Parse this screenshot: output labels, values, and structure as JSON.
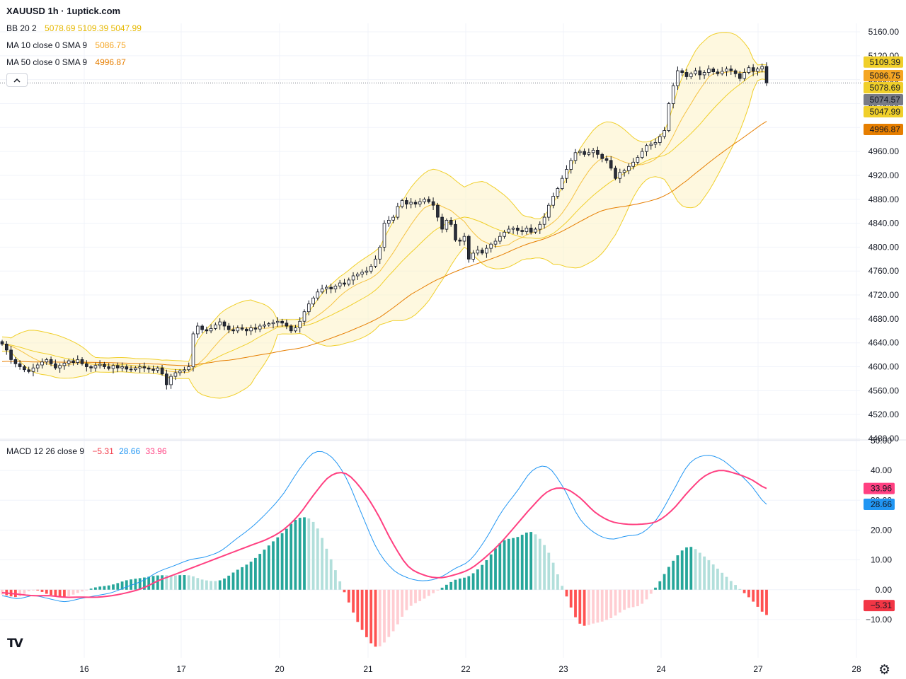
{
  "header": {
    "title": "XAUUSD 1h · 1uptick.com"
  },
  "indicators": {
    "bb": {
      "name": "BB 20 2",
      "values": [
        "5078.69",
        "5109.39",
        "5047.99"
      ],
      "color": "#e6b800"
    },
    "ma10": {
      "name": "MA 10 close 0 SMA 9",
      "value": "5086.75",
      "color": "#f5a623"
    },
    "ma50": {
      "name": "MA 50 close 0 SMA 9",
      "value": "4996.87",
      "color": "#e67e00"
    },
    "macd": {
      "name": "MACD 12 26 close 9",
      "values": [
        "−5.31",
        "28.66",
        "33.96"
      ],
      "colors": [
        "#f23645",
        "#2196f3",
        "#ff4081"
      ]
    }
  },
  "chart_data": [
    {
      "type": "candlestick",
      "symbol": "XAUUSD",
      "timeframe": "1h",
      "y_range": [
        4480,
        5160
      ],
      "y_ticks": [
        4480,
        4520,
        4560,
        4600,
        4640,
        4680,
        4720,
        4760,
        4800,
        4840,
        4880,
        4920,
        4960,
        5000,
        5040,
        5080,
        5120,
        5160
      ],
      "y_tick_labels": [
        "4480.00",
        "4520.00",
        "4560.00",
        "4600.00",
        "4640.00",
        "4680.00",
        "4720.00",
        "4760.00",
        "4800.00",
        "4840.00",
        "4880.00",
        "4920.00",
        "4960.00",
        "5000.00",
        "5040.00",
        "5080.00",
        "5120.00",
        "5160.00"
      ],
      "x_ticks": [
        "16",
        "17",
        "20",
        "21",
        "22",
        "23",
        "24",
        "27",
        "28"
      ],
      "last_price": 5074.57,
      "price_labels": [
        {
          "text": "5109.39",
          "value": 5109.39,
          "color": "#f0cf2a"
        },
        {
          "text": "5086.75",
          "value": 5086.75,
          "color": "#f5a623"
        },
        {
          "text": "5078.69",
          "value": 5078.69,
          "color": "#f0cf2a"
        },
        {
          "text": "5074.57",
          "value": 5074.57,
          "color": "#787b86"
        },
        {
          "text": "5047.99",
          "value": 5047.99,
          "color": "#f0cf2a"
        },
        {
          "text": "4996.87",
          "value": 4996.87,
          "color": "#e67e00"
        }
      ],
      "closes": [
        4638,
        4628,
        4612,
        4605,
        4600,
        4595,
        4592,
        4598,
        4603,
        4608,
        4612,
        4605,
        4598,
        4602,
        4606,
        4610,
        4607,
        4612,
        4605,
        4600,
        4598,
        4602,
        4604,
        4600,
        4597,
        4602,
        4598,
        4600,
        4596,
        4595,
        4598,
        4600,
        4598,
        4596,
        4594,
        4598,
        4588,
        4570,
        4584,
        4590,
        4593,
        4595,
        4600,
        4655,
        4668,
        4662,
        4660,
        4664,
        4670,
        4675,
        4668,
        4662,
        4660,
        4665,
        4663,
        4660,
        4665,
        4663,
        4668,
        4670,
        4672,
        4674,
        4676,
        4673,
        4668,
        4660,
        4665,
        4676,
        4692,
        4705,
        4715,
        4725,
        4730,
        4733,
        4730,
        4735,
        4740,
        4738,
        4745,
        4752,
        4755,
        4758,
        4760,
        4768,
        4780,
        4800,
        4840,
        4845,
        4850,
        4868,
        4878,
        4872,
        4875,
        4872,
        4876,
        4880,
        4876,
        4870,
        4850,
        4830,
        4845,
        4838,
        4812,
        4810,
        4818,
        4780,
        4790,
        4795,
        4790,
        4798,
        4805,
        4810,
        4818,
        4825,
        4830,
        4832,
        4828,
        4826,
        4832,
        4825,
        4830,
        4838,
        4850,
        4870,
        4885,
        4898,
        4915,
        4930,
        4945,
        4958,
        4960,
        4955,
        4958,
        4962,
        4955,
        4948,
        4945,
        4932,
        4915,
        4925,
        4928,
        4935,
        4942,
        4950,
        4960,
        4970,
        4972,
        4975,
        4985,
        4995,
        5040,
        5070,
        5095,
        5092,
        5085,
        5090,
        5095,
        5088,
        5092,
        5098,
        5093,
        5090,
        5094,
        5098,
        5095,
        5090,
        5082,
        5092,
        5100,
        5094,
        5098,
        5102,
        5074.57
      ],
      "ma50_start": 4608,
      "bb_upper_peaks": [
        4653,
        4615,
        4718,
        4892,
        4987,
        5140
      ],
      "bb_lower_troughs": [
        4572,
        4562,
        4685,
        4790,
        4770,
        4875
      ]
    },
    {
      "type": "macd",
      "y_range": [
        -15,
        50
      ],
      "y_ticks": [
        -10,
        0,
        10,
        20,
        30,
        40,
        50
      ],
      "y_tick_labels": [
        "−10.00",
        "0.00",
        "10.00",
        "20.00",
        "30.00",
        "40.00",
        "50.00"
      ],
      "last_values": {
        "macd": 28.66,
        "signal": 33.96,
        "histogram": -5.31
      },
      "macd_line_keypoints": [
        -2,
        -3,
        -2,
        -3,
        -4,
        -3,
        -2,
        -1,
        1,
        3,
        6,
        8,
        10,
        11,
        13,
        17,
        21,
        26,
        32,
        40,
        46,
        45,
        38,
        26,
        14,
        7,
        4,
        3,
        4,
        7,
        10,
        17,
        26,
        33,
        40,
        41,
        34,
        24,
        19,
        17,
        18,
        19,
        24,
        33,
        42,
        45,
        44,
        40,
        35,
        28.66
      ],
      "signal_line_keypoints": [
        -1,
        -1.5,
        -2,
        -2,
        -2.5,
        -2.5,
        -2.5,
        -2,
        -1,
        0.5,
        3,
        5,
        7,
        9,
        11,
        13,
        15,
        17,
        20,
        25,
        32,
        38,
        39,
        34,
        26,
        16,
        8,
        5,
        4,
        5,
        7,
        11,
        16,
        22,
        28,
        33,
        34,
        31,
        26,
        23,
        22,
        22,
        23,
        27,
        33,
        38,
        40,
        39,
        37,
        33.96
      ]
    }
  ],
  "footer": {
    "logo": "TV",
    "settings_icon": "gear-icon"
  }
}
